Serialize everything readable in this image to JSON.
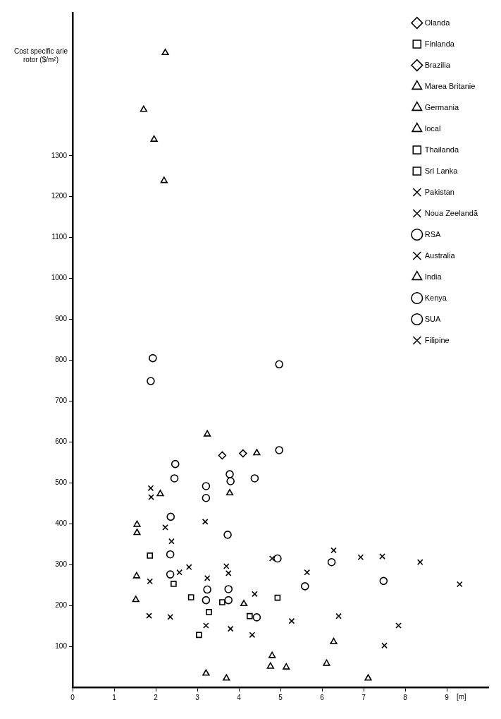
{
  "chart_data": {
    "type": "scatter",
    "ylabel": "Cost specific arie rotor ($/m²)",
    "xlabel": "[m]",
    "xlim": [
      0,
      10
    ],
    "ylim": [
      0,
      1650
    ],
    "xticks": [
      0,
      1,
      2,
      3,
      4,
      5,
      6,
      7,
      8,
      9
    ],
    "yticks": [
      100,
      200,
      300,
      400,
      500,
      600,
      700,
      800,
      900,
      1000,
      1100,
      1200,
      1300
    ],
    "legend": "top right",
    "series": [
      {
        "name": "Olanda",
        "color": "#000000",
        "marker": "diamond",
        "x": [
          4.1
        ],
        "values": [
          572
        ]
      },
      {
        "name": "Finlanda",
        "color": "#000000",
        "marker": "square",
        "x": [
          3.04
        ],
        "values": [
          128
        ]
      },
      {
        "name": "Brazilia",
        "color": "#000000",
        "marker": "diamond",
        "x": [
          3.6
        ],
        "values": [
          567
        ]
      },
      {
        "name": "Marea Britanie",
        "color": "#000000",
        "marker": "triangle",
        "x": [
          3.21,
          3.7,
          4.76,
          7.11
        ],
        "values": [
          34,
          22,
          51,
          22
        ]
      },
      {
        "name": "Germania",
        "color": "#000000",
        "marker": "triangle",
        "x": [
          2.11,
          4.12,
          4.8,
          5.14,
          6.11,
          6.28
        ],
        "values": [
          473,
          204,
          77,
          49,
          58,
          111
        ]
      },
      {
        "name": "local",
        "color": "#000000",
        "marker": "triangle",
        "x": [
          1.96,
          3.24,
          3.78,
          4.43
        ],
        "values": [
          1340,
          619,
          475,
          573
        ]
      },
      {
        "name": "Thailanda",
        "color": "#000000",
        "marker": "square",
        "x": [
          1.86,
          2.43,
          2.85,
          3.6,
          4.26,
          4.93
        ],
        "values": [
          322,
          253,
          220,
          208,
          174,
          219
        ]
      },
      {
        "name": "Sri Lanka",
        "color": "#000000",
        "marker": "square",
        "x": [
          3.28
        ],
        "values": [
          184
        ]
      },
      {
        "name": "Pakistan",
        "color": "#000000",
        "marker": "cross",
        "x": [
          7.5
        ],
        "values": [
          102
        ]
      },
      {
        "name": "Noua Zeelandă",
        "color": "#000000",
        "marker": "cross",
        "x": [
          1.84,
          2.57,
          2.8
        ],
        "values": [
          175,
          281,
          294
        ]
      },
      {
        "name": "RSA",
        "color": "#000000",
        "marker": "circle",
        "x": [
          2.35,
          3.24,
          3.75,
          4.43,
          5.59
        ],
        "values": [
          325,
          239,
          213,
          171,
          247
        ]
      },
      {
        "name": "Australia",
        "color": "#000000",
        "marker": "cross",
        "x": [
          1.88,
          1.89,
          2.23,
          2.38,
          1.86,
          2.35,
          3.24,
          3.21,
          3.75,
          4.38,
          3.8,
          4.32,
          4.8,
          6.28,
          6.93,
          7.45,
          8.36,
          5.64,
          9.31,
          5.27,
          6.4,
          7.84
        ],
        "values": [
          487,
          465,
          391,
          357,
          259,
          172,
          267,
          151,
          279,
          228,
          143,
          128,
          315,
          335,
          318,
          320,
          306,
          281,
          252,
          162,
          174,
          151
        ]
      },
      {
        "name": "India",
        "color": "#000000",
        "marker": "triangle",
        "x": [
          2.23,
          1.71,
          2.2,
          1.55,
          1.55,
          1.54,
          1.52
        ],
        "values": [
          1552,
          1413,
          1239,
          398,
          378,
          272,
          214
        ]
      },
      {
        "name": "Kenya",
        "color": "#000000",
        "marker": "circle",
        "x": [
          3.73,
          4.93,
          6.23,
          7.48
        ],
        "values": [
          373,
          315,
          306,
          260
        ]
      },
      {
        "name": "SUA",
        "color": "#000000",
        "marker": "circle",
        "x": [
          1.93,
          1.88,
          4.97,
          4.97,
          2.47,
          2.45,
          3.78,
          3.8,
          4.38,
          3.21,
          3.21,
          2.36,
          2.35,
          3.21,
          3.75
        ],
        "values": [
          805,
          749,
          790,
          580,
          546,
          511,
          521,
          504,
          511,
          492,
          463,
          417,
          276,
          213,
          240
        ]
      },
      {
        "name": "Filipine",
        "color": "#000000",
        "marker": "cross",
        "x": [
          3.19,
          3.7
        ],
        "values": [
          405,
          296
        ]
      }
    ]
  }
}
